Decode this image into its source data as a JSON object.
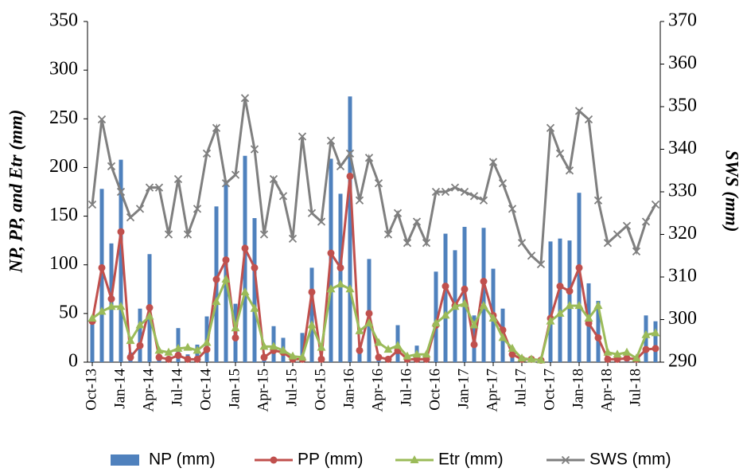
{
  "chart_data": {
    "type": "combo",
    "categories": [
      "Oct-13",
      null,
      null,
      "Jan-14",
      null,
      null,
      "Apr-14",
      null,
      null,
      "Jul-14",
      null,
      null,
      "Oct-14",
      null,
      null,
      "Jan-15",
      null,
      null,
      "Apr-15",
      null,
      null,
      "Jul-15",
      null,
      null,
      "Oct-15",
      null,
      null,
      "Jan-16",
      null,
      null,
      "Apr-16",
      null,
      null,
      "Jul-16",
      null,
      null,
      "Oct-16",
      null,
      null,
      "Jan-17",
      null,
      null,
      "Apr-17",
      null,
      null,
      "Jul-17",
      null,
      null,
      "Oct-17",
      null,
      null,
      "Jan-18",
      null,
      null,
      "Apr-18",
      null,
      null,
      "Jul-18",
      null,
      null
    ],
    "ylabel": "NP, PP, and Etr (mm)",
    "y2label": "SWS (mm)",
    "ylim": [
      0,
      350
    ],
    "yticks": [
      0,
      50,
      100,
      150,
      200,
      250,
      300,
      350
    ],
    "y2lim": [
      290,
      370
    ],
    "y2ticks": [
      290,
      300,
      310,
      320,
      330,
      340,
      350,
      360,
      370
    ],
    "grid": false,
    "legend": "bottom",
    "series": [
      {
        "name": "NP (mm)",
        "type": "bar",
        "color": "#4f81bd",
        "values": [
          45,
          178,
          122,
          208,
          10,
          55,
          111,
          8,
          5,
          35,
          8,
          18,
          47,
          160,
          185,
          60,
          212,
          148,
          8,
          37,
          25,
          5,
          30,
          97,
          5,
          209,
          173,
          273,
          15,
          106,
          8,
          5,
          38,
          5,
          17,
          5,
          93,
          132,
          115,
          139,
          48,
          138,
          96,
          55,
          8,
          5,
          3,
          2,
          124,
          127,
          125,
          174,
          81,
          63,
          5,
          3,
          5,
          3,
          48,
          42
        ]
      },
      {
        "name": "PP (mm)",
        "type": "line",
        "marker": "circle",
        "color": "#c0504d",
        "values": [
          42,
          97,
          65,
          134,
          5,
          17,
          56,
          5,
          3,
          7,
          3,
          3,
          13,
          85,
          105,
          25,
          117,
          97,
          5,
          12,
          10,
          3,
          3,
          72,
          3,
          112,
          97,
          191,
          12,
          50,
          5,
          3,
          12,
          3,
          3,
          3,
          38,
          78,
          58,
          75,
          18,
          83,
          48,
          33,
          8,
          3,
          3,
          2,
          45,
          78,
          73,
          97,
          40,
          25,
          3,
          3,
          4,
          3,
          13,
          14
        ]
      },
      {
        "name": "Etr (mm)",
        "type": "line",
        "marker": "triangle",
        "color": "#9bbb59",
        "values": [
          45,
          52,
          57,
          57,
          22,
          38,
          47,
          12,
          10,
          14,
          15,
          12,
          20,
          62,
          85,
          35,
          72,
          55,
          16,
          16,
          12,
          6,
          5,
          38,
          15,
          75,
          80,
          75,
          32,
          40,
          20,
          13,
          17,
          6,
          8,
          8,
          40,
          48,
          57,
          60,
          38,
          58,
          45,
          25,
          14,
          4,
          3,
          2,
          42,
          50,
          58,
          58,
          45,
          58,
          10,
          8,
          10,
          4,
          28,
          30
        ]
      },
      {
        "name": "SWS (mm)",
        "type": "line",
        "marker": "x",
        "axis": "y2",
        "color": "#7f7f7f",
        "values": [
          327,
          347,
          336,
          330,
          324,
          326,
          331,
          331,
          320,
          333,
          320,
          326,
          339,
          345,
          332,
          334,
          352,
          340,
          320,
          333,
          329,
          319,
          343,
          325,
          323,
          342,
          336,
          339,
          328,
          338,
          332,
          320,
          325,
          318,
          323,
          318,
          330,
          330,
          331,
          330,
          329,
          328,
          337,
          332,
          326,
          318,
          315,
          313,
          345,
          339,
          335,
          349,
          347,
          328,
          318,
          320,
          322,
          316,
          323,
          327
        ]
      }
    ]
  }
}
